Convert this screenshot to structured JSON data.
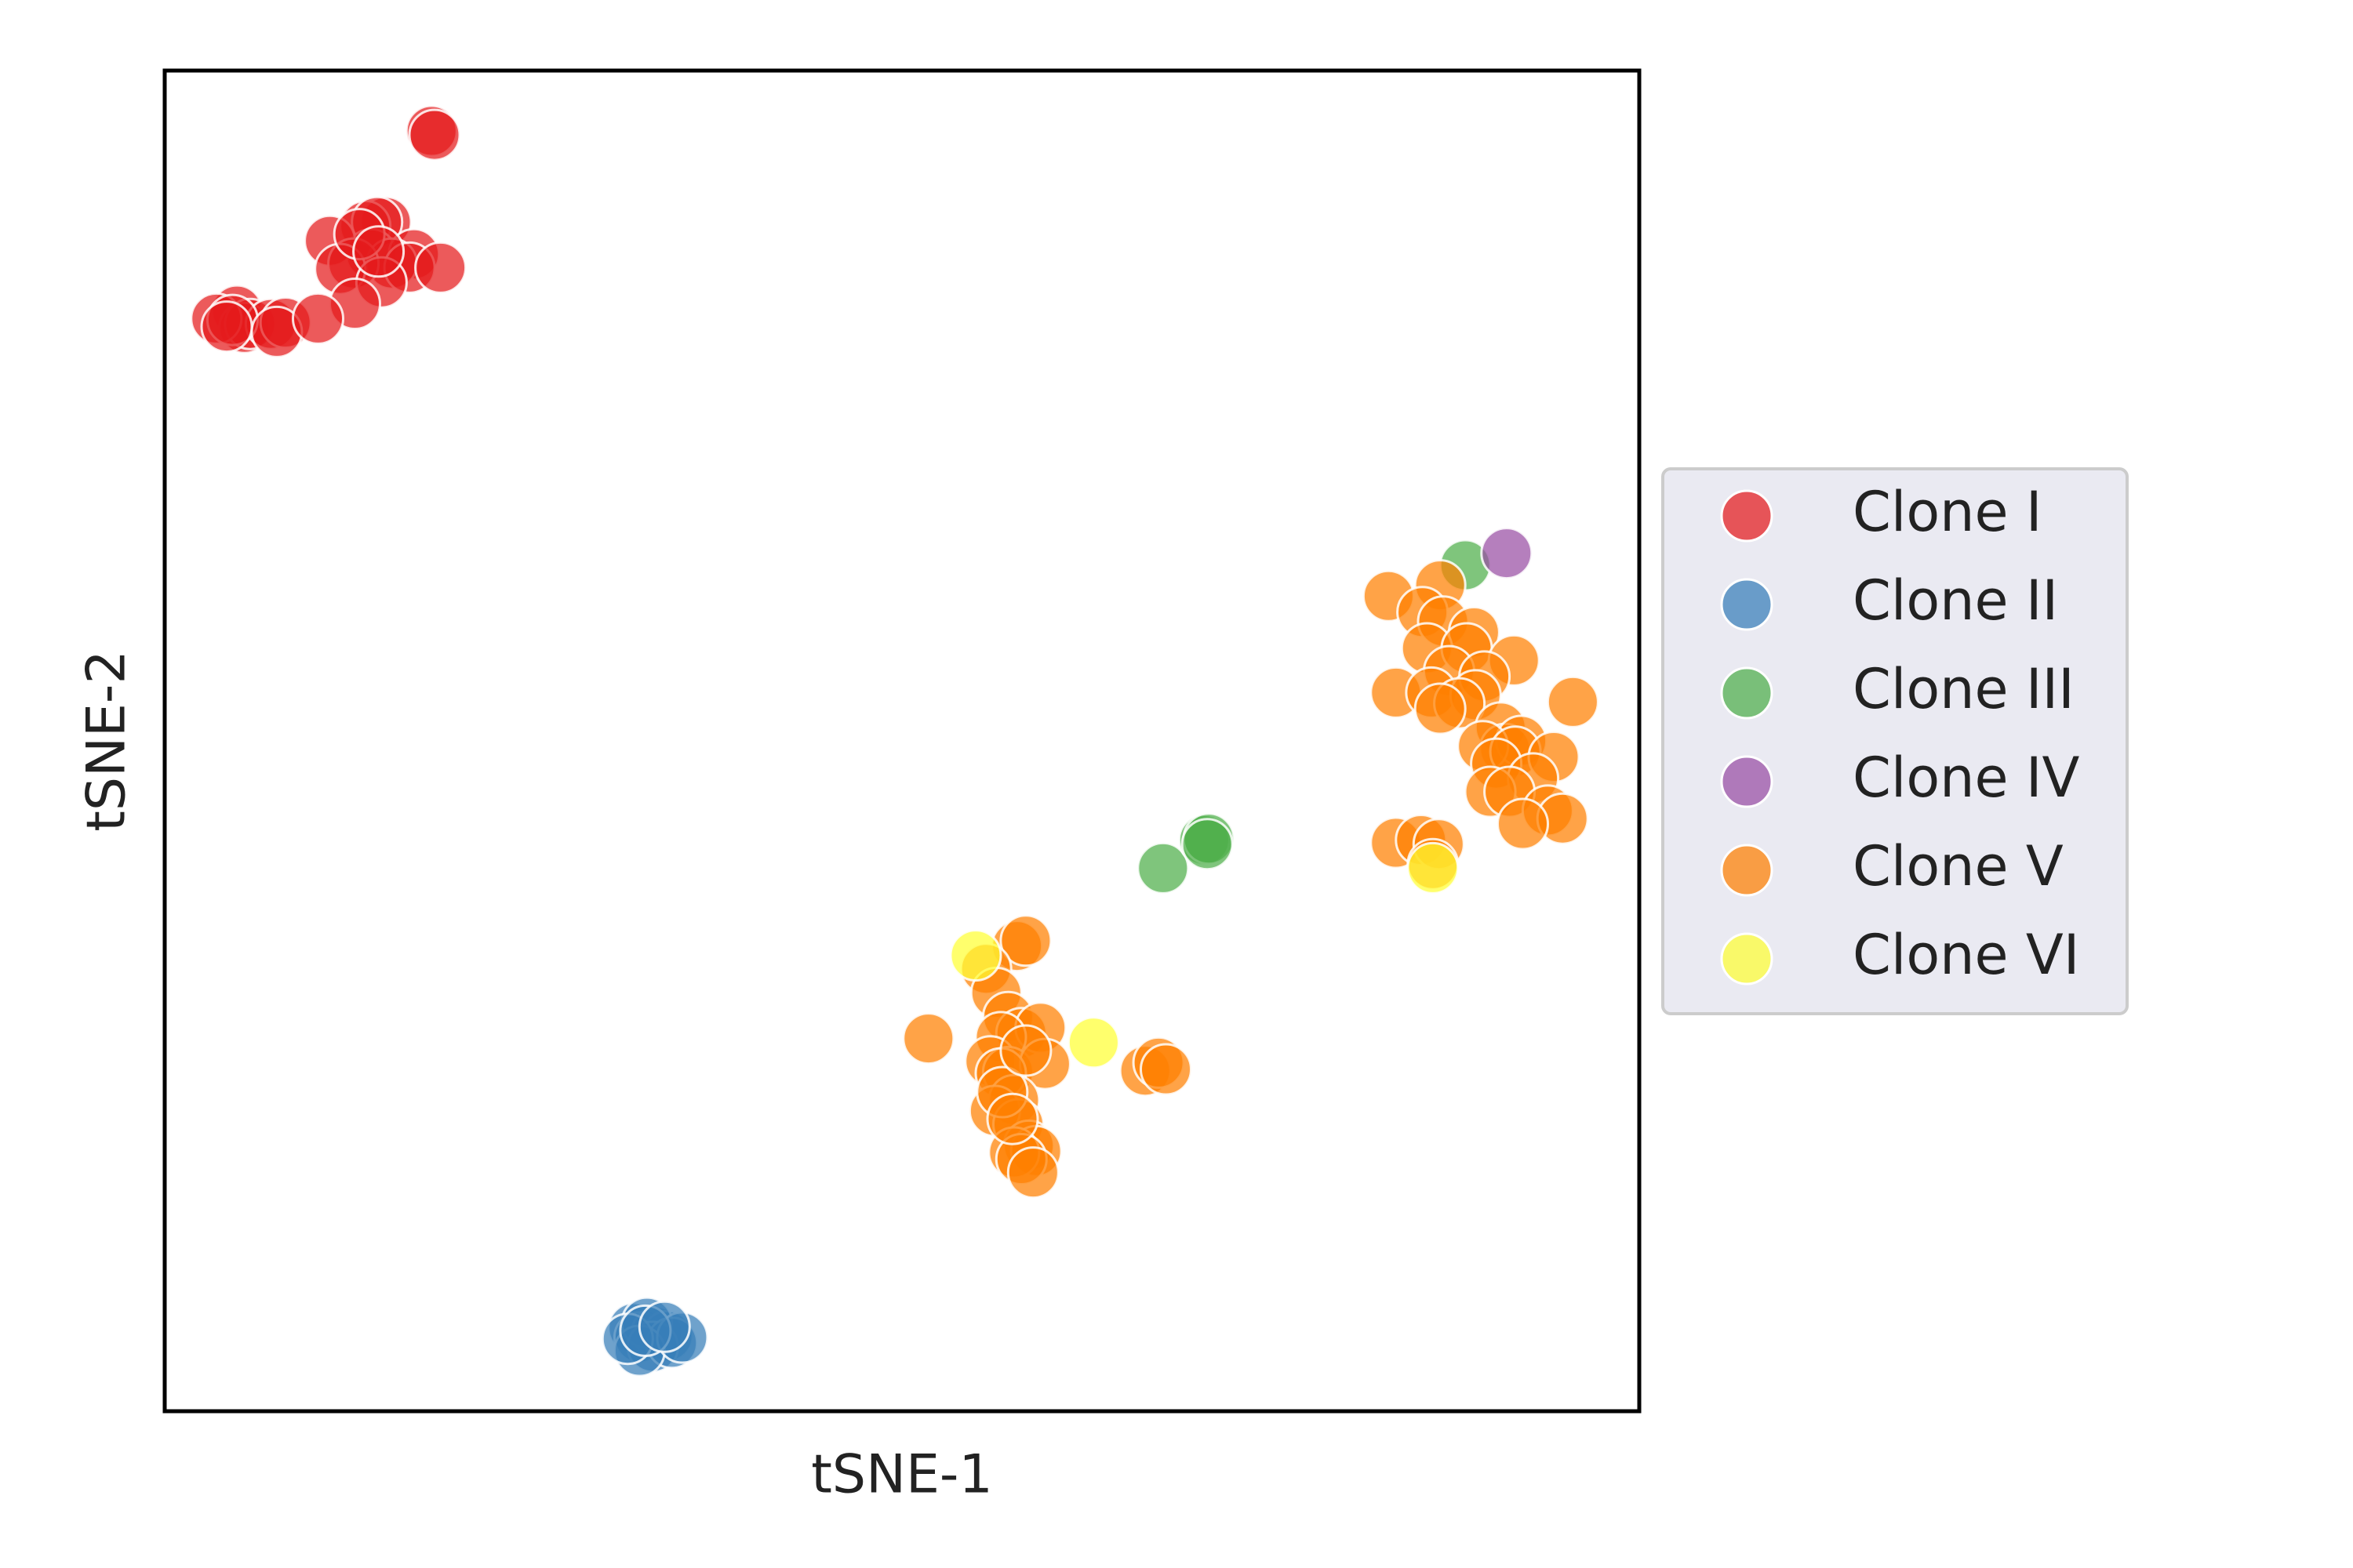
{
  "chart_data": {
    "type": "scatter",
    "title": "",
    "xlabel": "tSNE-1",
    "ylabel": "tSNE-2",
    "xticks": [],
    "yticks": [],
    "xlim": [
      0,
      100
    ],
    "ylim": [
      0,
      100
    ],
    "grid": false,
    "legend_position": "right",
    "series": [
      {
        "name": "Clone I",
        "color": "#e41a1c",
        "points": [
          [
            18.1,
            95.5
          ],
          [
            18.3,
            95.2
          ],
          [
            15.0,
            88.7
          ],
          [
            13.6,
            88.4
          ],
          [
            14.4,
            88.7
          ],
          [
            14.0,
            86.3
          ],
          [
            16.9,
            86.3
          ],
          [
            11.2,
            87.3
          ],
          [
            15.4,
            85.6
          ],
          [
            16.6,
            85.3
          ],
          [
            12.8,
            85.6
          ],
          [
            11.9,
            85.2
          ],
          [
            14.7,
            84.2
          ],
          [
            18.7,
            85.3
          ],
          [
            12.9,
            82.6
          ],
          [
            4.9,
            82.1
          ],
          [
            5.4,
            80.8
          ],
          [
            5.8,
            81.1
          ],
          [
            7.2,
            81.1
          ],
          [
            8.2,
            81.2
          ],
          [
            3.5,
            81.5
          ],
          [
            4.6,
            81.4
          ],
          [
            7.6,
            80.5
          ],
          [
            10.4,
            81.5
          ],
          [
            4.2,
            80.9
          ],
          [
            13.2,
            87.8
          ],
          [
            14.5,
            86.5
          ]
        ]
      },
      {
        "name": "Clone II",
        "color": "#377eb8",
        "points": [
          [
            31.8,
            6.2
          ],
          [
            32.2,
            5.5
          ],
          [
            33.4,
            5.9
          ],
          [
            34.1,
            5.6
          ],
          [
            32.7,
            6.6
          ],
          [
            33.1,
            4.8
          ],
          [
            34.4,
            5.1
          ],
          [
            32.2,
            4.5
          ],
          [
            31.4,
            5.4
          ],
          [
            35.1,
            5.5
          ],
          [
            32.6,
            6.0
          ],
          [
            33.9,
            6.3
          ]
        ]
      },
      {
        "name": "Clone III",
        "color": "#4daf4a",
        "points": [
          [
            88.2,
            63.1
          ],
          [
            67.7,
            40.5
          ],
          [
            70.5,
            42.6
          ],
          [
            70.8,
            42.7
          ],
          [
            70.7,
            42.3
          ]
        ]
      },
      {
        "name": "Clone IV",
        "color": "#984ea3",
        "points": [
          [
            91.0,
            64.0
          ]
        ]
      },
      {
        "name": "Clone V",
        "color": "#ff7f00",
        "points": [
          [
            86.5,
            61.6
          ],
          [
            83.0,
            60.8
          ],
          [
            85.3,
            59.6
          ],
          [
            86.7,
            58.9
          ],
          [
            88.8,
            58.1
          ],
          [
            85.6,
            56.9
          ],
          [
            88.3,
            56.9
          ],
          [
            91.5,
            56.0
          ],
          [
            87.1,
            55.2
          ],
          [
            89.5,
            54.8
          ],
          [
            83.5,
            53.6
          ],
          [
            85.9,
            53.6
          ],
          [
            88.9,
            53.4
          ],
          [
            87.8,
            52.8
          ],
          [
            95.5,
            52.9
          ],
          [
            86.5,
            52.4
          ],
          [
            90.6,
            51.0
          ],
          [
            90.9,
            49.4
          ],
          [
            92.0,
            50.0
          ],
          [
            89.4,
            49.6
          ],
          [
            91.6,
            49.2
          ],
          [
            94.2,
            48.8
          ],
          [
            90.3,
            48.3
          ],
          [
            92.8,
            47.2
          ],
          [
            89.9,
            46.2
          ],
          [
            91.2,
            46.2
          ],
          [
            93.8,
            44.8
          ],
          [
            94.8,
            44.2
          ],
          [
            92.1,
            43.8
          ],
          [
            83.5,
            42.4
          ],
          [
            85.2,
            42.6
          ],
          [
            86.4,
            42.3
          ],
          [
            86.0,
            40.8
          ],
          [
            57.8,
            34.7
          ],
          [
            58.4,
            35.1
          ],
          [
            55.7,
            33.0
          ],
          [
            56.4,
            31.2
          ],
          [
            57.2,
            29.4
          ],
          [
            58.1,
            28.2
          ],
          [
            59.4,
            28.6
          ],
          [
            56.7,
            27.9
          ],
          [
            51.8,
            27.8
          ],
          [
            56.0,
            26.1
          ],
          [
            57.2,
            25.3
          ],
          [
            59.7,
            25.9
          ],
          [
            56.7,
            25.2
          ],
          [
            57.6,
            23.2
          ],
          [
            56.3,
            22.4
          ],
          [
            57.9,
            21.4
          ],
          [
            58.6,
            19.8
          ],
          [
            59.1,
            19.4
          ],
          [
            57.6,
            19.3
          ],
          [
            58.1,
            18.8
          ],
          [
            58.9,
            17.8
          ],
          [
            66.5,
            25.4
          ],
          [
            67.4,
            26.0
          ],
          [
            67.9,
            25.5
          ],
          [
            56.8,
            23.8
          ],
          [
            57.5,
            21.8
          ],
          [
            58.4,
            26.9
          ]
        ]
      },
      {
        "name": "Clone VI",
        "color": "#ffff33",
        "points": [
          [
            55.0,
            34.0
          ],
          [
            63.0,
            27.5
          ],
          [
            86.0,
            40.5
          ]
        ]
      }
    ]
  }
}
